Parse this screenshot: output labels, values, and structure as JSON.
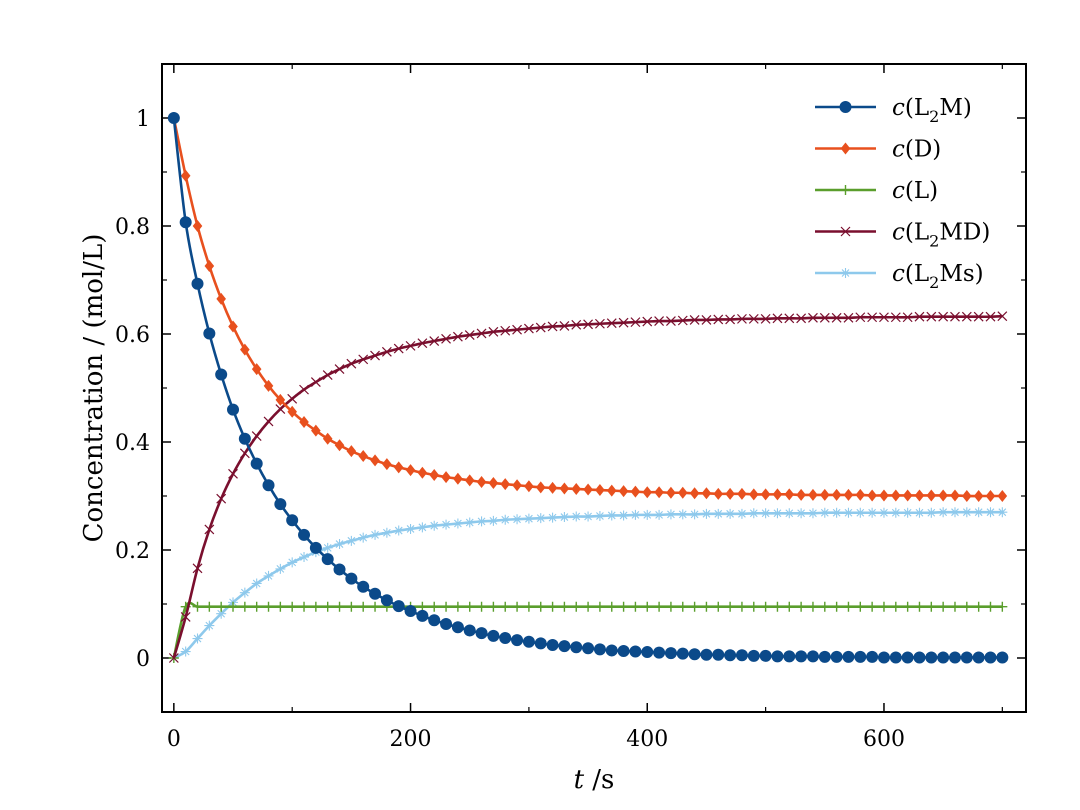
{
  "chart_data": {
    "type": "line",
    "xlabel": {
      "italic": "t",
      "rest": " /s"
    },
    "ylabel": "Concentration / (mol/L)",
    "xlim": [
      -10,
      720
    ],
    "ylim": [
      -0.1,
      1.1
    ],
    "xticks": [
      0,
      200,
      400,
      600
    ],
    "xtick_labels": [
      "0",
      "200",
      "400",
      "600"
    ],
    "xminor": [
      100,
      300,
      500,
      700
    ],
    "yticks": [
      0,
      0.2,
      0.4,
      0.6,
      0.8,
      1
    ],
    "ytick_labels": [
      "0",
      "0.2",
      "0.4",
      "0.6",
      "0.8",
      "1"
    ],
    "yminor": [
      0.1,
      0.3,
      0.5,
      0.7,
      0.9
    ],
    "legend_position": "top-right",
    "series": [
      {
        "name": "c(L2M)",
        "label_italic": "c",
        "label_base": "(L",
        "label_sub": "2",
        "label_rest": "M)",
        "color": "#0b4a8a",
        "marker": "circle",
        "x": [
          0,
          10,
          20,
          30,
          40,
          50,
          60,
          70,
          80,
          90,
          100,
          110,
          120,
          130,
          140,
          150,
          160,
          170,
          180,
          190,
          200,
          210,
          220,
          230,
          240,
          250,
          260,
          270,
          280,
          290,
          300,
          310,
          320,
          330,
          340,
          350,
          360,
          370,
          380,
          390,
          400,
          410,
          420,
          430,
          440,
          450,
          460,
          470,
          480,
          490,
          500,
          510,
          520,
          530,
          540,
          550,
          560,
          570,
          580,
          590,
          600,
          610,
          620,
          630,
          640,
          650,
          660,
          670,
          680,
          690,
          700
        ],
        "y": [
          1,
          0.807,
          0.693,
          0.601,
          0.525,
          0.46,
          0.406,
          0.36,
          0.32,
          0.285,
          0.255,
          0.228,
          0.204,
          0.183,
          0.164,
          0.147,
          0.132,
          0.119,
          0.107,
          0.096,
          0.087,
          0.078,
          0.07,
          0.063,
          0.057,
          0.051,
          0.046,
          0.041,
          0.037,
          0.033,
          0.03,
          0.027,
          0.024,
          0.022,
          0.02,
          0.018,
          0.016,
          0.014,
          0.013,
          0.012,
          0.011,
          0.01,
          0.009,
          0.008,
          0.007,
          0.006,
          0.006,
          0.005,
          0.005,
          0.004,
          0.004,
          0.003,
          0.003,
          0.003,
          0.003,
          0.002,
          0.002,
          0.002,
          0.002,
          0.002,
          0.001,
          0.001,
          0.001,
          0.001,
          0.001,
          0.001,
          0.001,
          0.001,
          0.001,
          0.001,
          0.001
        ]
      },
      {
        "name": "c(D)",
        "label_italic": "c",
        "label_base": "(D)",
        "label_sub": "",
        "label_rest": "",
        "color": "#e8501e",
        "marker": "diamond",
        "x": [
          0,
          10,
          20,
          30,
          40,
          50,
          60,
          70,
          80,
          90,
          100,
          110,
          120,
          130,
          140,
          150,
          160,
          170,
          180,
          190,
          200,
          210,
          220,
          230,
          240,
          250,
          260,
          270,
          280,
          290,
          300,
          310,
          320,
          330,
          340,
          350,
          360,
          370,
          380,
          390,
          400,
          410,
          420,
          430,
          440,
          450,
          460,
          470,
          480,
          490,
          500,
          510,
          520,
          530,
          540,
          550,
          560,
          570,
          580,
          590,
          600,
          610,
          620,
          630,
          640,
          650,
          660,
          670,
          680,
          690,
          700
        ],
        "y": [
          1,
          0.893,
          0.8,
          0.726,
          0.665,
          0.614,
          0.571,
          0.535,
          0.504,
          0.478,
          0.456,
          0.437,
          0.421,
          0.406,
          0.394,
          0.383,
          0.374,
          0.366,
          0.359,
          0.353,
          0.348,
          0.343,
          0.339,
          0.335,
          0.332,
          0.329,
          0.326,
          0.324,
          0.322,
          0.32,
          0.318,
          0.316,
          0.315,
          0.314,
          0.313,
          0.312,
          0.311,
          0.31,
          0.309,
          0.308,
          0.307,
          0.307,
          0.306,
          0.306,
          0.305,
          0.305,
          0.304,
          0.304,
          0.304,
          0.303,
          0.303,
          0.303,
          0.303,
          0.302,
          0.302,
          0.302,
          0.302,
          0.302,
          0.302,
          0.301,
          0.301,
          0.301,
          0.301,
          0.301,
          0.301,
          0.301,
          0.301,
          0.3,
          0.3,
          0.3,
          0.3
        ]
      },
      {
        "name": "c(L)",
        "label_italic": "c",
        "label_base": "(L)",
        "label_sub": "",
        "label_rest": "",
        "color": "#5a9e2c",
        "marker": "plus",
        "x": [
          0,
          10,
          20,
          30,
          40,
          50,
          60,
          70,
          80,
          90,
          100,
          110,
          120,
          130,
          140,
          150,
          160,
          170,
          180,
          190,
          200,
          210,
          220,
          230,
          240,
          250,
          260,
          270,
          280,
          290,
          300,
          310,
          320,
          330,
          340,
          350,
          360,
          370,
          380,
          390,
          400,
          410,
          420,
          430,
          440,
          450,
          460,
          470,
          480,
          490,
          500,
          510,
          520,
          530,
          540,
          550,
          560,
          570,
          580,
          590,
          600,
          610,
          620,
          630,
          640,
          650,
          660,
          670,
          680,
          690,
          700
        ],
        "y": [
          0,
          0.095,
          0.095,
          0.095,
          0.095,
          0.095,
          0.095,
          0.095,
          0.095,
          0.095,
          0.095,
          0.095,
          0.095,
          0.095,
          0.095,
          0.095,
          0.095,
          0.095,
          0.095,
          0.095,
          0.095,
          0.095,
          0.095,
          0.095,
          0.095,
          0.095,
          0.095,
          0.095,
          0.095,
          0.095,
          0.095,
          0.095,
          0.095,
          0.095,
          0.095,
          0.095,
          0.095,
          0.095,
          0.095,
          0.095,
          0.095,
          0.095,
          0.095,
          0.095,
          0.095,
          0.095,
          0.095,
          0.095,
          0.095,
          0.095,
          0.095,
          0.095,
          0.095,
          0.095,
          0.095,
          0.095,
          0.095,
          0.095,
          0.095,
          0.095,
          0.095,
          0.095,
          0.095,
          0.095,
          0.095,
          0.095,
          0.095,
          0.095,
          0.095,
          0.095,
          0.095
        ]
      },
      {
        "name": "c(L2MD)",
        "label_italic": "c",
        "label_base": "(L",
        "label_sub": "2",
        "label_rest": "MD)",
        "color": "#7a0f2e",
        "marker": "x",
        "x": [
          0,
          10,
          20,
          30,
          40,
          50,
          60,
          70,
          80,
          90,
          100,
          110,
          120,
          130,
          140,
          150,
          160,
          170,
          180,
          190,
          200,
          210,
          220,
          230,
          240,
          250,
          260,
          270,
          280,
          290,
          300,
          310,
          320,
          330,
          340,
          350,
          360,
          370,
          380,
          390,
          400,
          410,
          420,
          430,
          440,
          450,
          460,
          470,
          480,
          490,
          500,
          510,
          520,
          530,
          540,
          550,
          560,
          570,
          580,
          590,
          600,
          610,
          620,
          630,
          640,
          650,
          660,
          670,
          680,
          690,
          700
        ],
        "y": [
          0,
          0.076,
          0.166,
          0.238,
          0.295,
          0.341,
          0.379,
          0.411,
          0.438,
          0.461,
          0.48,
          0.497,
          0.511,
          0.524,
          0.535,
          0.545,
          0.553,
          0.56,
          0.567,
          0.573,
          0.578,
          0.583,
          0.587,
          0.591,
          0.595,
          0.598,
          0.601,
          0.604,
          0.606,
          0.608,
          0.61,
          0.612,
          0.614,
          0.615,
          0.617,
          0.618,
          0.619,
          0.62,
          0.621,
          0.622,
          0.623,
          0.624,
          0.624,
          0.625,
          0.626,
          0.626,
          0.627,
          0.627,
          0.628,
          0.628,
          0.628,
          0.629,
          0.629,
          0.629,
          0.63,
          0.63,
          0.63,
          0.63,
          0.631,
          0.631,
          0.631,
          0.631,
          0.631,
          0.632,
          0.632,
          0.632,
          0.632,
          0.632,
          0.632,
          0.632,
          0.633
        ]
      },
      {
        "name": "c(L2Ms)",
        "label_italic": "c",
        "label_base": "(L",
        "label_sub": "2",
        "label_rest": "Ms)",
        "color": "#8ec9ec",
        "marker": "asterisk",
        "x": [
          0,
          10,
          20,
          30,
          40,
          50,
          60,
          70,
          80,
          90,
          100,
          110,
          120,
          130,
          140,
          150,
          160,
          170,
          180,
          190,
          200,
          210,
          220,
          230,
          240,
          250,
          260,
          270,
          280,
          290,
          300,
          310,
          320,
          330,
          340,
          350,
          360,
          370,
          380,
          390,
          400,
          410,
          420,
          430,
          440,
          450,
          460,
          470,
          480,
          490,
          500,
          510,
          520,
          530,
          540,
          550,
          560,
          570,
          580,
          590,
          600,
          610,
          620,
          630,
          640,
          650,
          660,
          670,
          680,
          690,
          700
        ],
        "y": [
          0,
          0.012,
          0.036,
          0.06,
          0.082,
          0.103,
          0.121,
          0.138,
          0.152,
          0.165,
          0.177,
          0.187,
          0.196,
          0.204,
          0.211,
          0.217,
          0.223,
          0.228,
          0.232,
          0.236,
          0.239,
          0.242,
          0.245,
          0.247,
          0.249,
          0.251,
          0.253,
          0.254,
          0.256,
          0.257,
          0.258,
          0.259,
          0.26,
          0.261,
          0.262,
          0.262,
          0.263,
          0.264,
          0.264,
          0.265,
          0.265,
          0.265,
          0.266,
          0.266,
          0.266,
          0.267,
          0.267,
          0.267,
          0.267,
          0.268,
          0.268,
          0.268,
          0.268,
          0.268,
          0.268,
          0.269,
          0.269,
          0.269,
          0.269,
          0.269,
          0.269,
          0.269,
          0.269,
          0.269,
          0.269,
          0.27,
          0.27,
          0.27,
          0.27,
          0.27,
          0.27
        ]
      }
    ]
  }
}
